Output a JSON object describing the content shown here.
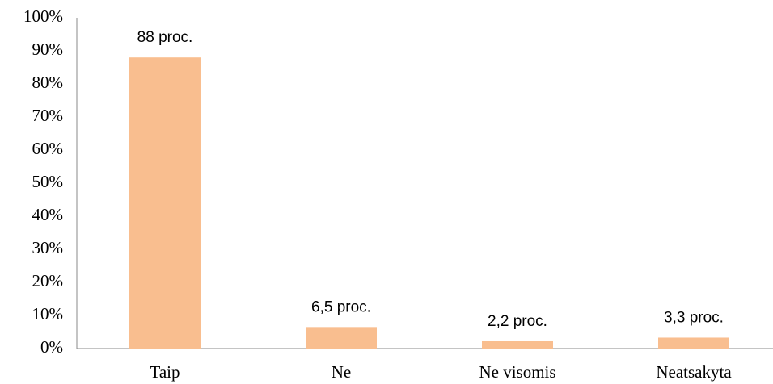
{
  "chart_data": {
    "type": "bar",
    "categories": [
      "Taip",
      "Ne",
      "Ne visomis",
      "Neatsakyta"
    ],
    "values": [
      88,
      6.5,
      2.2,
      3.3
    ],
    "value_labels": [
      "88 proc.",
      "6,5 proc.",
      "2,2 proc.",
      "3,3 proc."
    ],
    "color": "#f9be8f",
    "ylim": [
      0,
      100
    ],
    "yticks": [
      {
        "value": 0,
        "label": "0%"
      },
      {
        "value": 10,
        "label": "10%"
      },
      {
        "value": 20,
        "label": "20%"
      },
      {
        "value": 30,
        "label": "30%"
      },
      {
        "value": 40,
        "label": "40%"
      },
      {
        "value": 50,
        "label": "50%"
      },
      {
        "value": 60,
        "label": "60%"
      },
      {
        "value": 70,
        "label": "70%"
      },
      {
        "value": 80,
        "label": "80%"
      },
      {
        "value": 90,
        "label": "90%"
      },
      {
        "value": 100,
        "label": "100%"
      }
    ],
    "grid": false
  }
}
